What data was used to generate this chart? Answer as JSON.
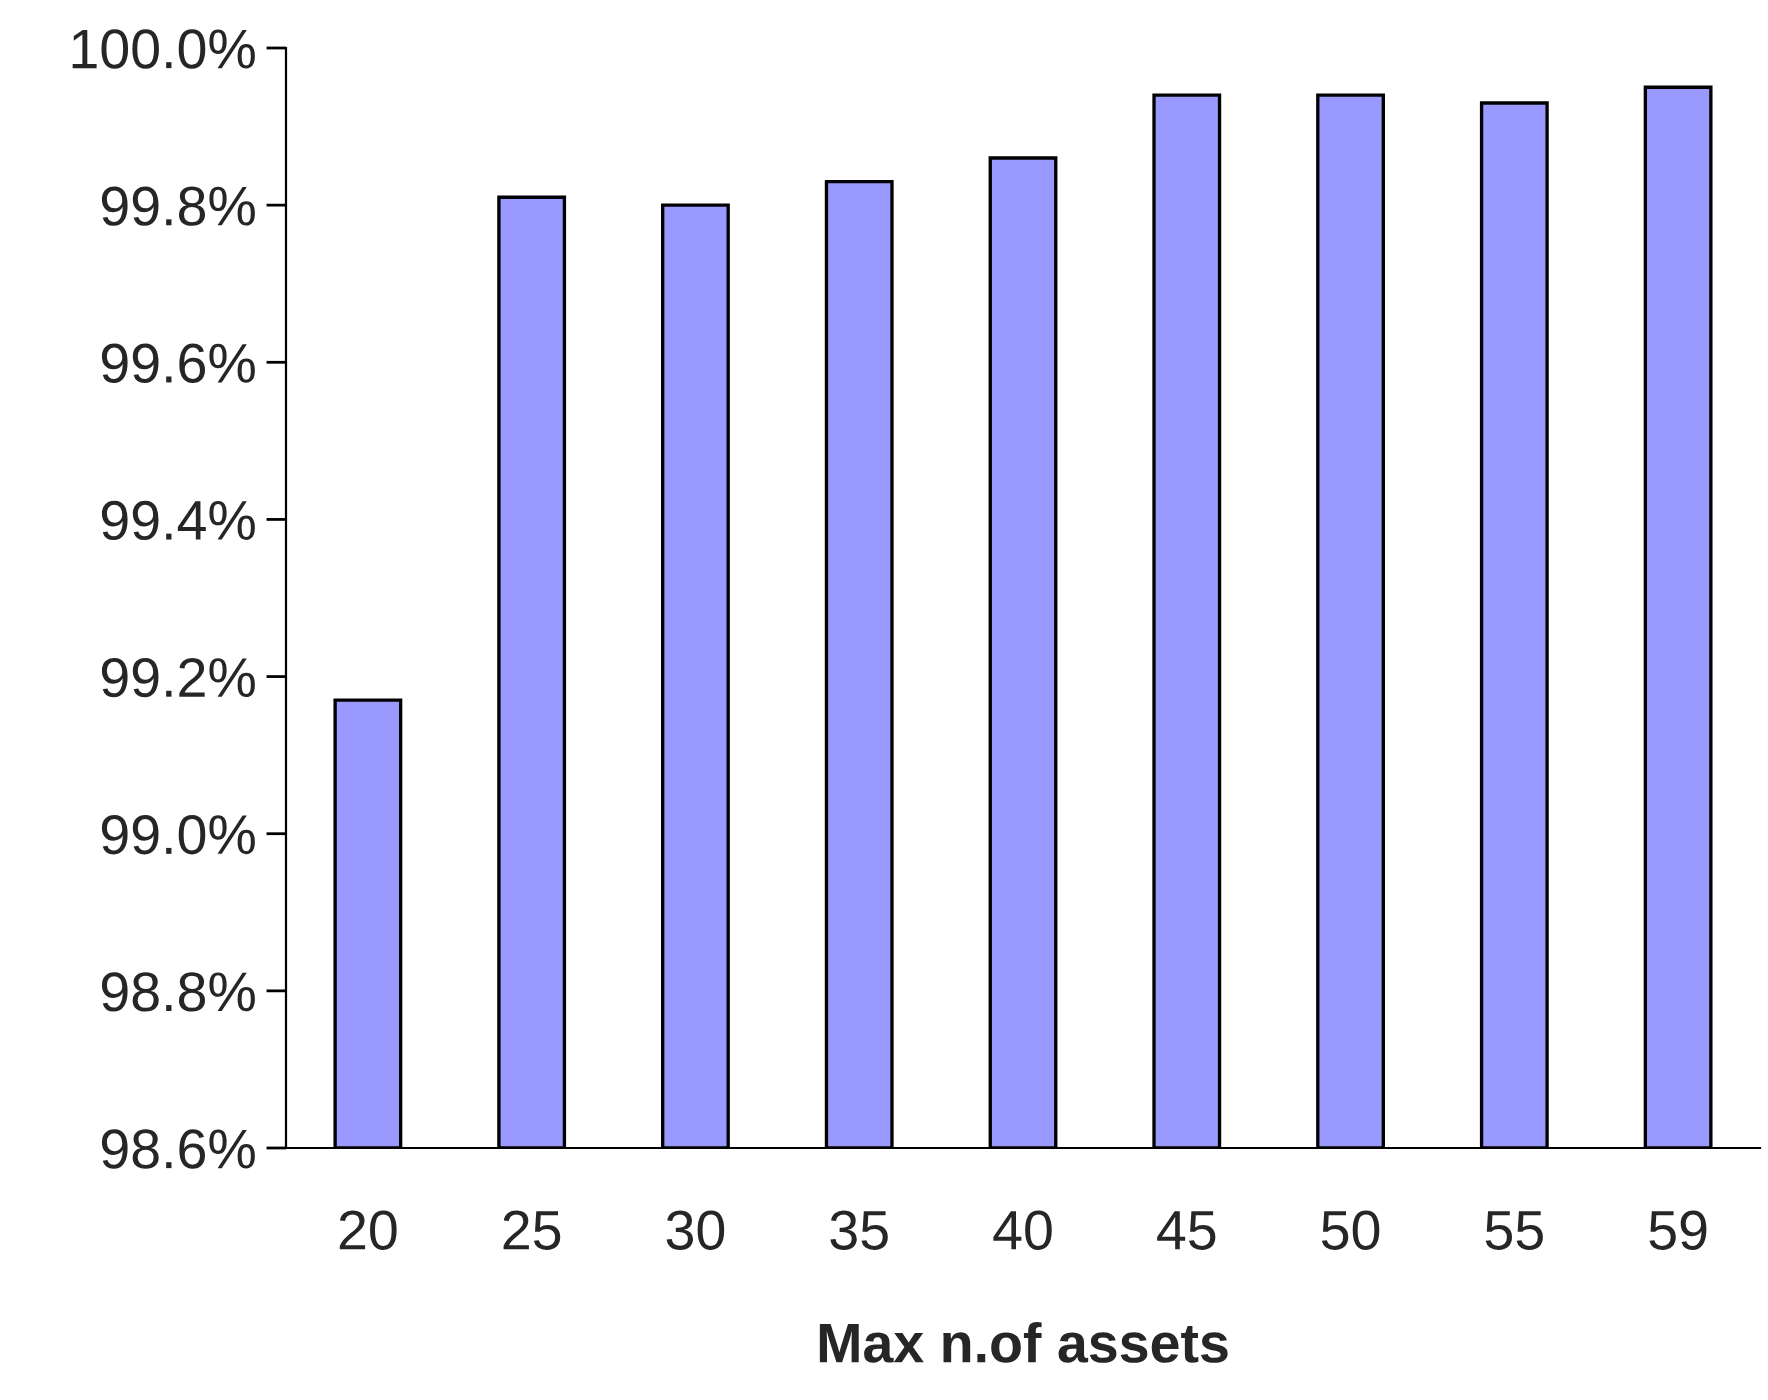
{
  "chart_data": {
    "type": "bar",
    "xlabel": "Max n.of assets",
    "categories": [
      "20",
      "25",
      "30",
      "35",
      "40",
      "45",
      "50",
      "55",
      "59"
    ],
    "values": [
      99.17,
      99.81,
      99.8,
      99.83,
      99.86,
      99.94,
      99.94,
      99.93,
      99.95
    ],
    "color": "#9999ff",
    "ylim": [
      98.6,
      100.0
    ],
    "yticks": [
      {
        "value": 98.6,
        "label": "98.6%"
      },
      {
        "value": 98.8,
        "label": "98.8%"
      },
      {
        "value": 99.0,
        "label": "99.0%"
      },
      {
        "value": 99.2,
        "label": "99.2%"
      },
      {
        "value": 99.4,
        "label": "99.4%"
      },
      {
        "value": 99.6,
        "label": "99.6%"
      },
      {
        "value": 99.8,
        "label": "99.8%"
      },
      {
        "value": 100.0,
        "label": "100.0%"
      }
    ],
    "grid": false,
    "legend": false
  }
}
